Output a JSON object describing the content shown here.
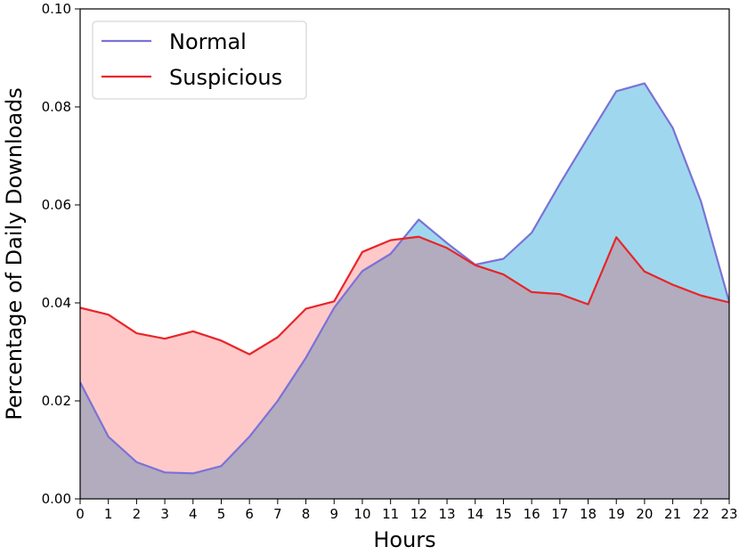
{
  "chart_data": {
    "type": "area",
    "xlabel": "Hours",
    "ylabel": "Percentage of Daily Downloads",
    "xlim": [
      0,
      23
    ],
    "ylim": [
      0,
      0.1
    ],
    "x": [
      0,
      1,
      2,
      3,
      4,
      5,
      6,
      7,
      8,
      9,
      10,
      11,
      12,
      13,
      14,
      15,
      16,
      17,
      18,
      19,
      20,
      21,
      22,
      23
    ],
    "x_ticks": [
      "0",
      "1",
      "2",
      "3",
      "4",
      "5",
      "6",
      "7",
      "8",
      "9",
      "10",
      "11",
      "12",
      "13",
      "14",
      "15",
      "16",
      "17",
      "18",
      "19",
      "20",
      "21",
      "22",
      "23"
    ],
    "y_ticks": [
      0,
      0.02,
      0.04,
      0.06,
      0.08,
      0.1
    ],
    "y_tick_labels": [
      "0.00",
      "0.02",
      "0.04",
      "0.06",
      "0.08",
      "0.10"
    ],
    "grid": false,
    "legend_position": "top-left",
    "series": [
      {
        "name": "Normal",
        "line_color": "#7b72d6",
        "fill_color": "#9fd8ee",
        "values": [
          0.0238,
          0.0127,
          0.0075,
          0.0054,
          0.0052,
          0.0067,
          0.0127,
          0.02,
          0.0288,
          0.039,
          0.0465,
          0.05,
          0.057,
          0.0522,
          0.0478,
          0.049,
          0.0543,
          0.0643,
          0.0738,
          0.0832,
          0.0848,
          0.0757,
          0.0607,
          0.0402
        ]
      },
      {
        "name": "Suspicious",
        "line_color": "#e8252a",
        "fill_color": "#ffc9c9",
        "values": [
          0.039,
          0.0376,
          0.0338,
          0.0327,
          0.0342,
          0.0323,
          0.0295,
          0.033,
          0.0388,
          0.0403,
          0.0504,
          0.0528,
          0.0535,
          0.0512,
          0.0477,
          0.0458,
          0.0422,
          0.0418,
          0.0397,
          0.0534,
          0.0464,
          0.0437,
          0.0415,
          0.0401
        ]
      }
    ],
    "overlap_fill_color": "#b2acbe"
  }
}
